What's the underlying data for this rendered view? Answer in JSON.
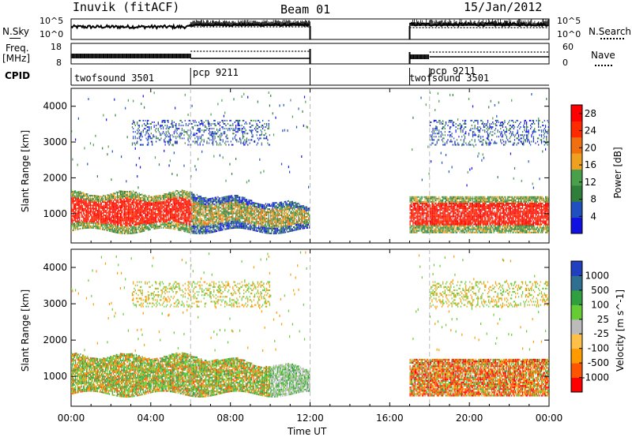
{
  "header": {
    "station": "Inuvik (fitACF)",
    "beam": "Beam 01",
    "date": "15/Jan/2012"
  },
  "status_panels": {
    "nsky_label": "N.Sky",
    "nsky_ticks": [
      "10^5",
      "10^0"
    ],
    "nsearch_label": "N.Search",
    "nsearch_ticks": [
      "10^5",
      "10^0"
    ],
    "freq_label_line1": "Freq.",
    "freq_label_line2": "[MHz]",
    "freq_ticks": [
      "18",
      "8"
    ],
    "nave_label": "Nave",
    "nave_ticks": [
      "60",
      "0"
    ],
    "cpid_label": "CPID",
    "cpid_segments": [
      {
        "label": "twofsound 3501",
        "start_h": 0,
        "end_h": 6
      },
      {
        "label": "pcp 9211",
        "start_h": 6,
        "end_h": 12
      },
      {
        "label": "twofsound 3501",
        "start_h": 17,
        "end_h": 18
      },
      {
        "label": "pcp 9211",
        "start_h": 18,
        "end_h": 24
      }
    ]
  },
  "colors": {
    "power": [
      "#1010e0",
      "#2050c0",
      "#2f7f3a",
      "#4aa04a",
      "#f0a020",
      "#f07010",
      "#ff2a00",
      "#ff0000"
    ],
    "velocity": [
      "#ff0000",
      "#ff5500",
      "#ff9a00",
      "#ffc04a",
      "#bbbbbb",
      "#66cc33",
      "#2f9f3f",
      "#2f6f8f",
      "#2040c0"
    ]
  },
  "chart_data": [
    {
      "type": "heatmap",
      "title": "",
      "xlabel": "Time UT",
      "ylabel": "Slant Range [km]",
      "x_ticks": [
        "00:00",
        "04:00",
        "08:00",
        "12:00",
        "16:00",
        "20:00",
        "00:00"
      ],
      "x_range_hours": [
        0,
        24
      ],
      "y_ticks": [
        "1000",
        "2000",
        "3000",
        "4000"
      ],
      "ylim": [
        180,
        4500
      ],
      "colorbar": {
        "label": "Power [dB]",
        "ticks": [
          "4",
          "8",
          "12",
          "16",
          "20",
          "24",
          "28"
        ],
        "range": [
          0,
          30
        ]
      },
      "data_gaps_hours": [
        [
          12.0,
          17.0
        ]
      ],
      "features": [
        {
          "time_h": [
            0,
            12
          ],
          "range_km": [
            500,
            1600
          ],
          "value": "red/orange core 24-30 dB to ~06:00, weakening green/blue 8-14 dB toward 12:00"
        },
        {
          "time_h": [
            17,
            24
          ],
          "range_km": [
            450,
            1500
          ],
          "value": "red core 24-30 dB, green/blue fringe"
        },
        {
          "time_h": [
            3,
            10
          ],
          "range_km": [
            2900,
            3600
          ],
          "value": "scattered blue/green 4-12 dB"
        },
        {
          "time_h": [
            18,
            24
          ],
          "range_km": [
            2800,
            3600
          ],
          "value": "scattered blue 4-8 dB"
        }
      ]
    },
    {
      "type": "heatmap",
      "title": "",
      "xlabel": "Time UT",
      "ylabel": "Slant Range [km]",
      "x_ticks": [
        "00:00",
        "04:00",
        "08:00",
        "12:00",
        "16:00",
        "20:00",
        "00:00"
      ],
      "x_range_hours": [
        0,
        24
      ],
      "y_ticks": [
        "1000",
        "2000",
        "3000",
        "4000"
      ],
      "ylim": [
        180,
        4500
      ],
      "colorbar": {
        "label": "Velocity [m s^-1]",
        "ticks": [
          "1000",
          "500",
          "100",
          "25",
          "-25",
          "-100",
          "-500",
          "-1000"
        ]
      },
      "data_gaps_hours": [
        [
          12.0,
          17.0
        ]
      ],
      "features": [
        {
          "time_h": [
            0,
            12
          ],
          "range_km": [
            500,
            1600
          ],
          "value": "mixed green (+100 to +500) and orange (-100 to -500), grey ground scatter near 10:00-12:00"
        },
        {
          "time_h": [
            17,
            24
          ],
          "range_km": [
            400,
            1500
          ],
          "value": "mostly orange/red (-100 to -1000), green near lower ranges"
        },
        {
          "time_h": [
            3,
            10
          ],
          "range_km": [
            2900,
            3600
          ],
          "value": "scattered orange and green"
        }
      ]
    }
  ]
}
